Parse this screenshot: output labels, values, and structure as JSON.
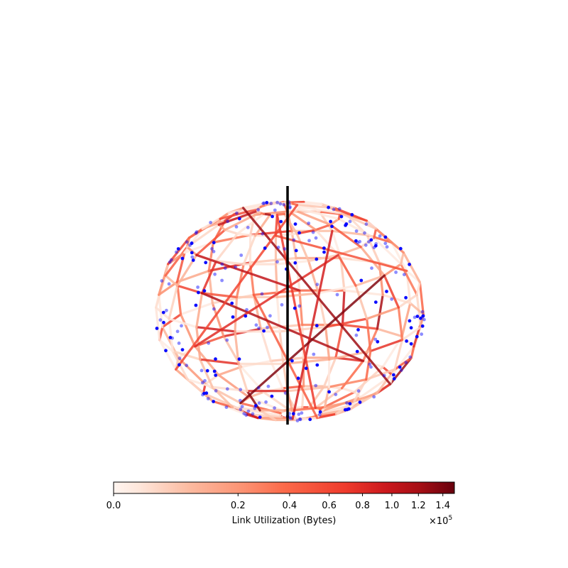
{
  "chart_data": {
    "type": "network",
    "colorbar": {
      "label": "Link Utilization (Bytes)",
      "colormap": "Reds",
      "scale": "power",
      "range": [
        0.0,
        1.5
      ],
      "ticks": [
        0.0,
        0.2,
        0.4,
        0.6,
        0.8,
        1.0,
        1.2,
        1.4
      ],
      "tick_labels": [
        "0.0",
        "0.2",
        "0.4",
        "0.6",
        "0.8",
        "1.0",
        "1.2",
        "1.4"
      ],
      "multiplier_base": "×10",
      "multiplier_exp": "5"
    },
    "node_color": "#0000ff",
    "divider_color": "#000000",
    "colors": {
      "low": "#fff5f0",
      "mid": "#fb6a4a",
      "high": "#67000d"
    },
    "legend": "none",
    "grid": false
  }
}
